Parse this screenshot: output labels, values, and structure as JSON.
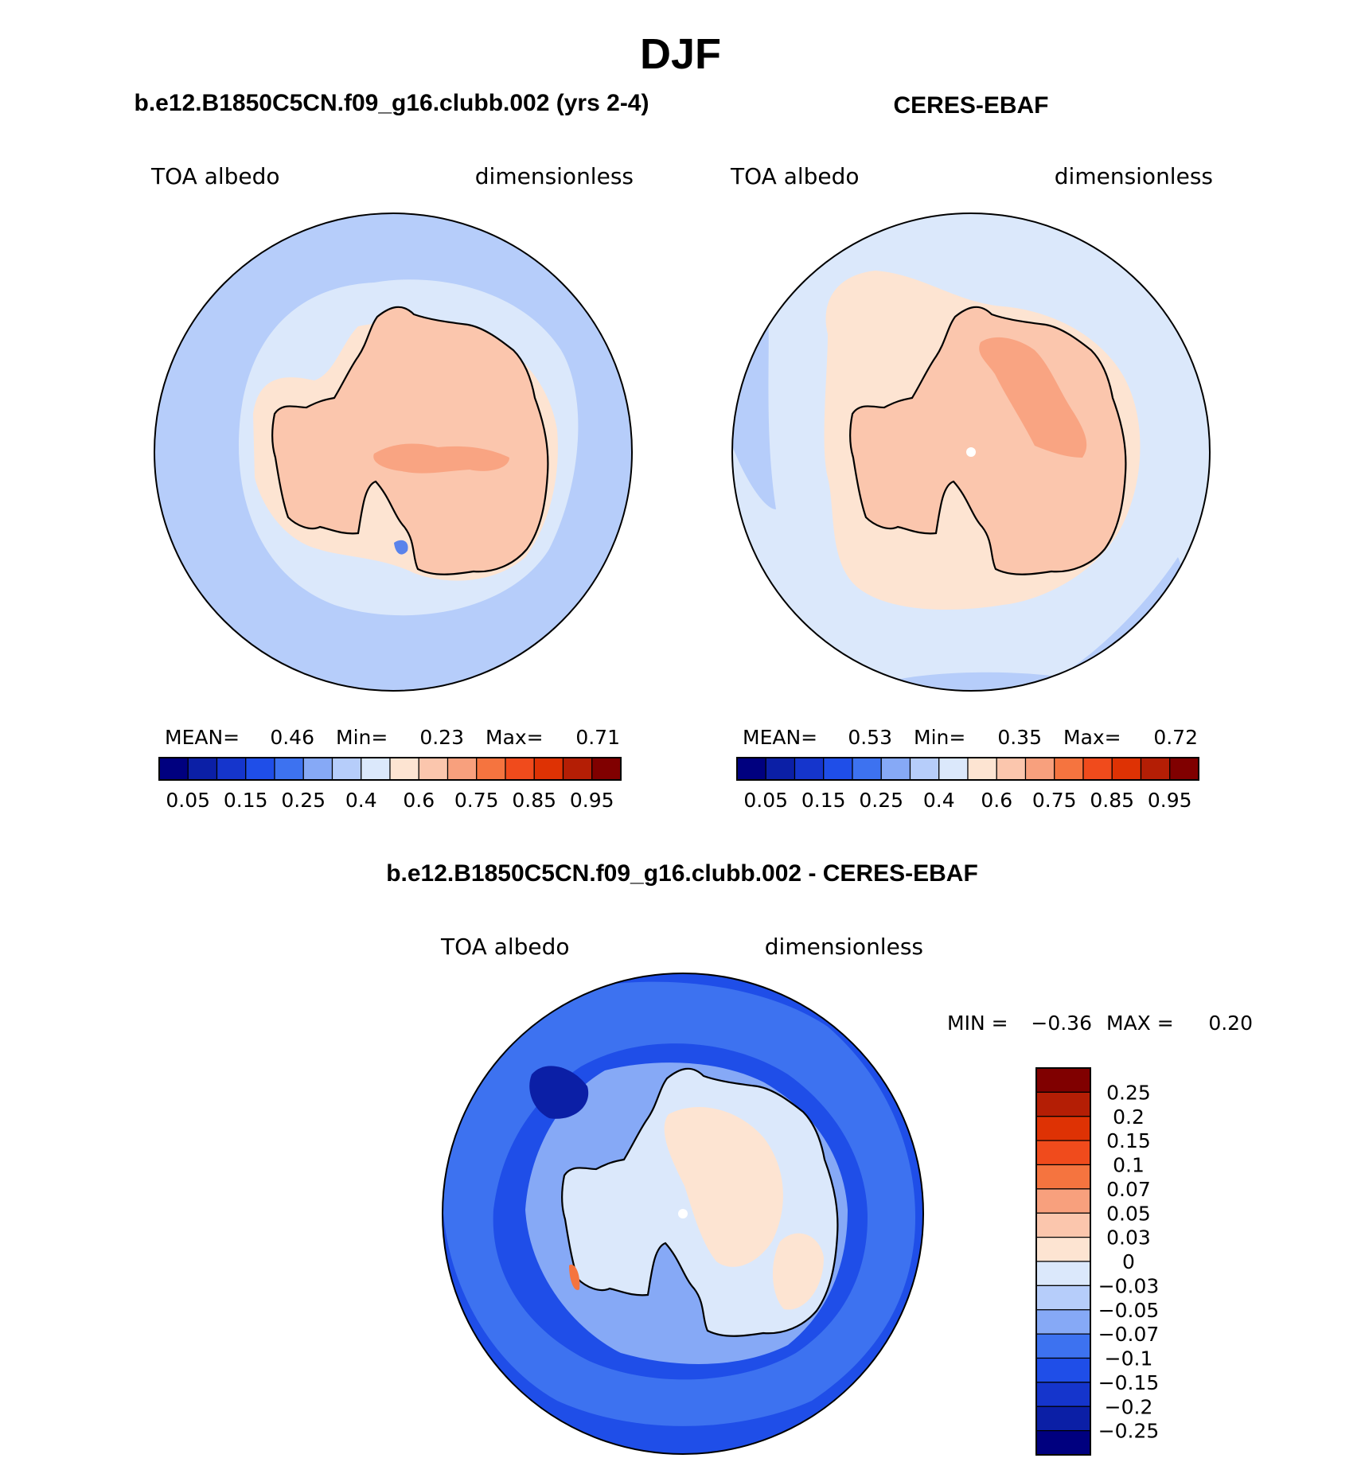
{
  "figure": {
    "season_title": "DJF"
  },
  "chart_data": [
    {
      "type": "heatmap",
      "projection": "south-polar-stereographic",
      "title": "b.e12.B1850C5CN.f09_g16.clubb.002 (yrs 2-4)",
      "left_label": "TOA albedo",
      "right_label": "dimensionless",
      "stats": {
        "mean_label": "MEAN=",
        "mean": "0.46",
        "min_label": "Min=",
        "min": "0.23",
        "max_label": "Max=",
        "max": "0.71"
      },
      "colorbar": {
        "orientation": "horizontal",
        "levels": [
          "0.05",
          "0.15",
          "0.25",
          "0.4",
          "0.6",
          "0.75",
          "0.85",
          "0.95"
        ],
        "colors": [
          "#00007f",
          "#0b1fa6",
          "#1535cc",
          "#1f4ee8",
          "#3d72f0",
          "#86a9f6",
          "#b6cdfa",
          "#dbe8fb",
          "#fde4d2",
          "#fbc6ad",
          "#f8a07d",
          "#f5743f",
          "#f04b1c",
          "#de3204",
          "#b41e05",
          "#800000"
        ]
      },
      "field": {
        "ocean_value": 0.3,
        "ice_edge_value": 0.42,
        "sea_ice_value": 0.6,
        "continent_value": 0.67,
        "interior_max": 0.71
      }
    },
    {
      "type": "heatmap",
      "projection": "south-polar-stereographic",
      "title": "CERES-EBAF",
      "left_label": "TOA albedo",
      "right_label": "dimensionless",
      "stats": {
        "mean_label": "MEAN=",
        "mean": "0.53",
        "min_label": "Min=",
        "min": "0.35",
        "max_label": "Max=",
        "max": "0.72"
      },
      "colorbar": {
        "orientation": "horizontal",
        "levels": [
          "0.05",
          "0.15",
          "0.25",
          "0.4",
          "0.6",
          "0.75",
          "0.85",
          "0.95"
        ],
        "colors": [
          "#00007f",
          "#0b1fa6",
          "#1535cc",
          "#1f4ee8",
          "#3d72f0",
          "#86a9f6",
          "#b6cdfa",
          "#dbe8fb",
          "#fde4d2",
          "#fbc6ad",
          "#f8a07d",
          "#f5743f",
          "#f04b1c",
          "#de3204",
          "#b41e05",
          "#800000"
        ]
      },
      "field": {
        "ocean_value": 0.42,
        "ice_edge_value": 0.5,
        "sea_ice_value": 0.55,
        "continent_value": 0.67,
        "interior_max": 0.72
      }
    },
    {
      "type": "heatmap",
      "projection": "south-polar-stereographic",
      "title": "b.e12.B1850C5CN.f09_g16.clubb.002 - CERES-EBAF",
      "left_label": "TOA albedo",
      "right_label": "dimensionless",
      "stats": {
        "min_label": "MIN =",
        "min": "−0.36",
        "max_label": "MAX =",
        "max": "0.20"
      },
      "colorbar": {
        "orientation": "vertical",
        "levels": [
          "0.25",
          "0.2",
          "0.15",
          "0.1",
          "0.07",
          "0.05",
          "0.03",
          "0",
          "−0.03",
          "−0.05",
          "−0.07",
          "−0.1",
          "−0.15",
          "−0.2",
          "−0.25"
        ],
        "colors": [
          "#800000",
          "#b41e05",
          "#de3204",
          "#f04b1c",
          "#f5743f",
          "#f8a07d",
          "#fbc6ad",
          "#fde4d2",
          "#dbe8fb",
          "#b6cdfa",
          "#86a9f6",
          "#3d72f0",
          "#1f4ee8",
          "#1535cc",
          "#0b1fa6",
          "#00007f"
        ]
      },
      "field": {
        "ocean_value": -0.12,
        "ice_edge_value": -0.07,
        "sea_ice_value": -0.15,
        "continent_value": -0.02,
        "interior_max": 0.2
      }
    }
  ]
}
